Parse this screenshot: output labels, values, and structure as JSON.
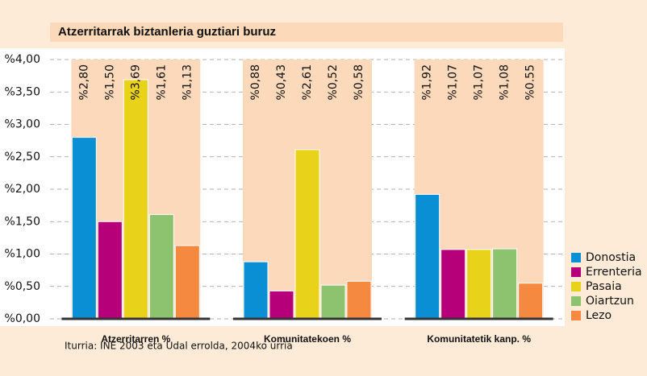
{
  "chart_data": {
    "type": "bar",
    "title": "Atzerritarrak biztanleria guztiari buruz",
    "categories": [
      "Atzerritarren %",
      "Komunitatekoen %",
      "Komunitatetik kanp. %"
    ],
    "series": [
      {
        "name": "Donostia",
        "color": "#0a8fd4",
        "values": [
          2.8,
          0.88,
          1.92
        ],
        "value_labels": [
          "%2,80",
          "%0,88",
          "%1,92"
        ]
      },
      {
        "name": "Errenteria",
        "color": "#b5007a",
        "values": [
          1.5,
          0.43,
          1.07
        ],
        "value_labels": [
          "%1,50",
          "%0,43",
          "%1,07"
        ]
      },
      {
        "name": "Pasaia",
        "color": "#e8d21a",
        "values": [
          3.69,
          2.61,
          1.07
        ],
        "value_labels": [
          "%3,69",
          "%2,61",
          "%1,07"
        ]
      },
      {
        "name": "Oiartzun",
        "color": "#8dc26e",
        "values": [
          1.61,
          0.52,
          1.08
        ],
        "value_labels": [
          "%1,61",
          "%0,52",
          "%1,08"
        ]
      },
      {
        "name": "Lezo",
        "color": "#f4893f",
        "values": [
          1.13,
          0.58,
          0.55
        ],
        "value_labels": [
          "%1,13",
          "%0,58",
          "%0.55"
        ]
      }
    ],
    "ylim": [
      0,
      4
    ],
    "yticks": [
      {
        "value": 0,
        "label": "%0,00"
      },
      {
        "value": 0.5,
        "label": "%0,50"
      },
      {
        "value": 1,
        "label": "%1,00"
      },
      {
        "value": 1.5,
        "label": "%1,50"
      },
      {
        "value": 2,
        "label": "%2,00"
      },
      {
        "value": 2.5,
        "label": "%2,50"
      },
      {
        "value": 3,
        "label": "%3,00"
      },
      {
        "value": 3.5,
        "label": "%3,50"
      },
      {
        "value": 4,
        "label": "%4,00"
      }
    ],
    "grid": true,
    "source": "Iturria: INE 2003 eta Udal errolda, 2004ko urria"
  }
}
